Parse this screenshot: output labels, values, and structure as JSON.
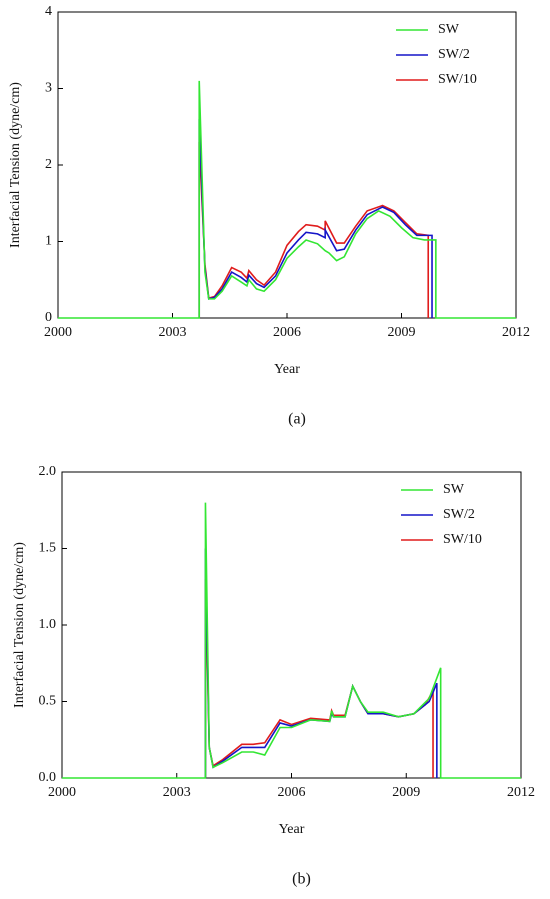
{
  "chart_data": [
    {
      "type": "line",
      "caption": "(a)",
      "xlabel": "Year",
      "ylabel": "Interfacial Tension (dyne/cm)",
      "xlim": [
        2000,
        2012
      ],
      "xticks": [
        2000,
        2003,
        2006,
        2009,
        2012
      ],
      "ylim": [
        0,
        4
      ],
      "yticks": [
        0,
        1,
        2,
        3,
        4
      ],
      "legend": "upper right",
      "series": [
        {
          "name": "SW",
          "color": "#33e633",
          "x": [
            2000,
            2003.7,
            2003.7,
            2003.85,
            2003.95,
            2004.1,
            2004.3,
            2004.55,
            2004.8,
            2004.95,
            2005.0,
            2005.2,
            2005.4,
            2005.7,
            2006.0,
            2006.3,
            2006.5,
            2006.8,
            2007.0,
            2007.1,
            2007.3,
            2007.5,
            2007.8,
            2008.1,
            2008.4,
            2008.7,
            2009.0,
            2009.3,
            2009.6,
            2009.9,
            2009.9,
            2012
          ],
          "values": [
            0,
            0,
            3.1,
            0.6,
            0.25,
            0.25,
            0.35,
            0.55,
            0.47,
            0.42,
            0.5,
            0.38,
            0.35,
            0.5,
            0.78,
            0.93,
            1.02,
            0.97,
            0.88,
            0.85,
            0.75,
            0.8,
            1.1,
            1.3,
            1.4,
            1.33,
            1.18,
            1.05,
            1.02,
            1.02,
            0,
            0
          ]
        },
        {
          "name": "SW/2",
          "color": "#1515c8",
          "x": [
            2003.7,
            2003.7,
            2003.85,
            2003.95,
            2004.1,
            2004.3,
            2004.55,
            2004.8,
            2004.95,
            2005.0,
            2005.2,
            2005.4,
            2005.7,
            2006.0,
            2006.3,
            2006.5,
            2006.8,
            2007.0,
            2007.0,
            2007.3,
            2007.5,
            2007.8,
            2008.1,
            2008.5,
            2008.8,
            2009.1,
            2009.4,
            2009.8,
            2009.8
          ],
          "values": [
            0,
            2.6,
            0.65,
            0.25,
            0.27,
            0.38,
            0.6,
            0.53,
            0.47,
            0.56,
            0.45,
            0.4,
            0.55,
            0.85,
            1.02,
            1.12,
            1.1,
            1.05,
            1.15,
            0.88,
            0.9,
            1.15,
            1.35,
            1.45,
            1.38,
            1.22,
            1.08,
            1.08,
            0
          ]
        },
        {
          "name": "SW/10",
          "color": "#e01c1c",
          "x": [
            2003.7,
            2003.7,
            2003.85,
            2003.95,
            2004.1,
            2004.3,
            2004.55,
            2004.8,
            2004.95,
            2005.0,
            2005.2,
            2005.4,
            2005.7,
            2006.0,
            2006.3,
            2006.5,
            2006.8,
            2007.0,
            2007.0,
            2007.3,
            2007.5,
            2007.8,
            2008.1,
            2008.5,
            2008.8,
            2009.1,
            2009.4,
            2009.7,
            2009.7
          ],
          "values": [
            0,
            2.3,
            0.7,
            0.26,
            0.28,
            0.42,
            0.66,
            0.6,
            0.52,
            0.62,
            0.5,
            0.43,
            0.6,
            0.95,
            1.13,
            1.22,
            1.2,
            1.15,
            1.27,
            0.98,
            0.98,
            1.2,
            1.4,
            1.47,
            1.4,
            1.25,
            1.1,
            1.08,
            0
          ]
        }
      ]
    },
    {
      "type": "line",
      "caption": "(b)",
      "xlabel": "Year",
      "ylabel": "Interfacial Tension (dyne/cm)",
      "xlim": [
        2000,
        2012
      ],
      "xticks": [
        2000,
        2003,
        2006,
        2009,
        2012
      ],
      "ylim": [
        0,
        2
      ],
      "yticks": [
        {
          "value": 0,
          "label": "0.0"
        },
        0.5,
        {
          "value": 1,
          "label": "1.0"
        },
        1.5,
        {
          "value": 2,
          "label": "2.0"
        }
      ],
      "legend": "upper right",
      "series": [
        {
          "name": "SW",
          "color": "#33e633",
          "x": [
            2000,
            2003.75,
            2003.75,
            2003.85,
            2003.95,
            2004.2,
            2004.7,
            2005.0,
            2005.3,
            2005.7,
            2006.0,
            2006.5,
            2007.0,
            2007.05,
            2007.1,
            2007.4,
            2007.6,
            2007.8,
            2008.0,
            2008.4,
            2008.8,
            2009.2,
            2009.6,
            2009.9,
            2009.9,
            2012
          ],
          "values": [
            0,
            0,
            1.8,
            0.2,
            0.07,
            0.1,
            0.17,
            0.17,
            0.15,
            0.33,
            0.33,
            0.38,
            0.37,
            0.44,
            0.4,
            0.4,
            0.6,
            0.5,
            0.43,
            0.43,
            0.4,
            0.42,
            0.52,
            0.72,
            0,
            0
          ]
        },
        {
          "name": "SW/2",
          "color": "#1515c8",
          "x": [
            2003.75,
            2003.75,
            2003.85,
            2003.95,
            2004.2,
            2004.7,
            2005.0,
            2005.3,
            2005.7,
            2006.0,
            2006.5,
            2007.0,
            2007.05,
            2007.1,
            2007.4,
            2007.6,
            2007.8,
            2008.0,
            2008.4,
            2008.8,
            2009.2,
            2009.6,
            2009.8,
            2009.8
          ],
          "values": [
            0,
            1.5,
            0.2,
            0.07,
            0.11,
            0.2,
            0.2,
            0.2,
            0.36,
            0.34,
            0.38,
            0.37,
            0.42,
            0.4,
            0.4,
            0.6,
            0.5,
            0.42,
            0.42,
            0.4,
            0.42,
            0.5,
            0.62,
            0
          ]
        },
        {
          "name": "SW/10",
          "color": "#e01c1c",
          "x": [
            2003.75,
            2003.75,
            2003.85,
            2003.95,
            2004.2,
            2004.7,
            2005.0,
            2005.3,
            2005.7,
            2006.0,
            2006.5,
            2007.0,
            2007.05,
            2007.1,
            2007.4,
            2007.6,
            2007.8,
            2008.0,
            2008.4,
            2008.8,
            2009.2,
            2009.5,
            2009.7,
            2009.7
          ],
          "values": [
            0,
            1.3,
            0.2,
            0.08,
            0.12,
            0.22,
            0.22,
            0.23,
            0.38,
            0.35,
            0.39,
            0.38,
            0.44,
            0.41,
            0.41,
            0.6,
            0.5,
            0.42,
            0.42,
            0.4,
            0.42,
            0.48,
            0.57,
            0
          ]
        }
      ]
    }
  ]
}
